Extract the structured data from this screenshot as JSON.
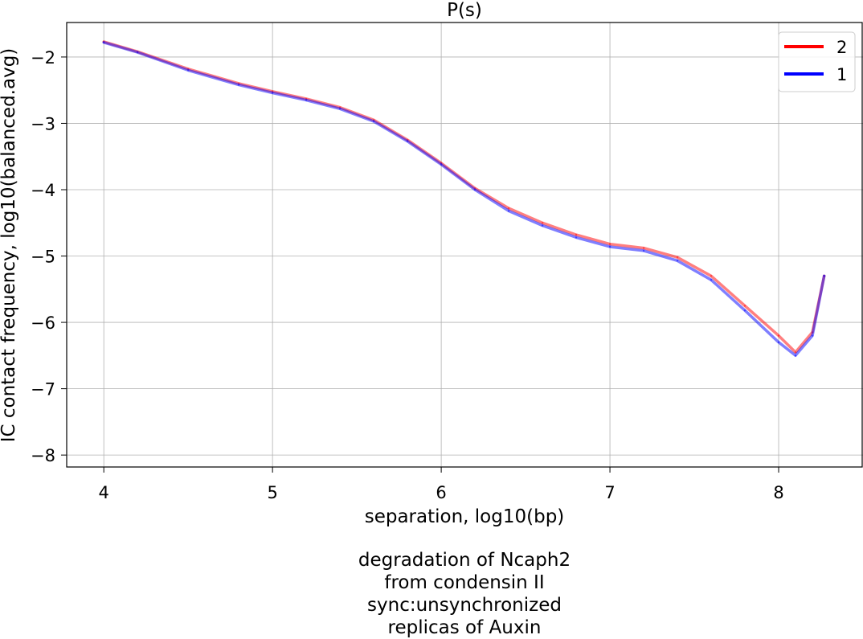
{
  "chart_data": {
    "type": "line",
    "title": "P(s)",
    "xlabel": "separation, log10(bp)",
    "ylabel": "IC contact frequency, log10(balanced.avg)",
    "xlim": [
      3.78,
      8.5
    ],
    "ylim": [
      -8.18,
      -1.48
    ],
    "xticks": [
      4,
      5,
      6,
      7,
      8
    ],
    "yticks": [
      -2,
      -3,
      -4,
      -5,
      -6,
      -7,
      -8
    ],
    "xtick_labels": [
      "4",
      "5",
      "6",
      "7",
      "8"
    ],
    "ytick_labels": [
      "−2",
      "−3",
      "−4",
      "−5",
      "−6",
      "−7",
      "−8"
    ],
    "grid": true,
    "legend_position": "top-right",
    "series": [
      {
        "name": "2",
        "color": "#ff0000",
        "x": [
          4.0,
          4.2,
          4.5,
          4.8,
          5.0,
          5.2,
          5.4,
          5.6,
          5.8,
          6.0,
          6.2,
          6.4,
          6.6,
          6.8,
          7.0,
          7.2,
          7.4,
          7.6,
          7.8,
          8.0,
          8.1,
          8.2,
          8.27
        ],
        "y": [
          -1.77,
          -1.92,
          -2.18,
          -2.4,
          -2.52,
          -2.63,
          -2.76,
          -2.95,
          -3.25,
          -3.6,
          -3.98,
          -4.28,
          -4.5,
          -4.68,
          -4.82,
          -4.88,
          -5.02,
          -5.3,
          -5.75,
          -6.2,
          -6.45,
          -6.15,
          -5.3
        ]
      },
      {
        "name": "1",
        "color": "#0000ff",
        "x": [
          4.0,
          4.2,
          4.5,
          4.8,
          5.0,
          5.2,
          5.4,
          5.6,
          5.8,
          6.0,
          6.2,
          6.4,
          6.6,
          6.8,
          7.0,
          7.2,
          7.4,
          7.6,
          7.8,
          8.0,
          8.1,
          8.2,
          8.27
        ],
        "y": [
          -1.78,
          -1.93,
          -2.2,
          -2.42,
          -2.54,
          -2.65,
          -2.78,
          -2.97,
          -3.27,
          -3.62,
          -4.0,
          -4.32,
          -4.54,
          -4.72,
          -4.86,
          -4.92,
          -5.07,
          -5.36,
          -5.82,
          -6.3,
          -6.5,
          -6.2,
          -5.3
        ]
      }
    ]
  },
  "caption_lines": [
    "degradation of Ncaph2",
    "from condensin II",
    "sync:unsynchronized",
    "replicas of Auxin"
  ]
}
